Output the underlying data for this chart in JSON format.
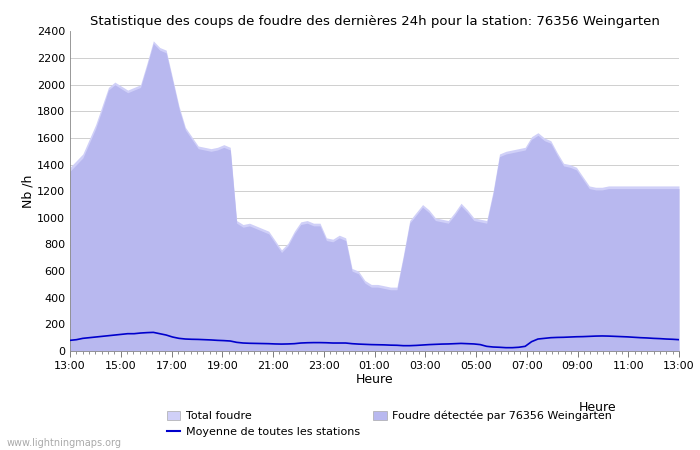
{
  "title": "Statistique des coups de foudre des dernières 24h pour la station: 76356 Weingarten",
  "xlabel": "Heure",
  "ylabel": "Nb /h",
  "ylim": [
    0,
    2400
  ],
  "yticks": [
    0,
    200,
    400,
    600,
    800,
    1000,
    1200,
    1400,
    1600,
    1800,
    2000,
    2200,
    2400
  ],
  "xtick_labels": [
    "13:00",
    "15:00",
    "17:00",
    "19:00",
    "21:00",
    "23:00",
    "01:00",
    "03:00",
    "05:00",
    "07:00",
    "09:00",
    "11:00",
    "13:00"
  ],
  "watermark": "www.lightningmaps.org",
  "total_foudre_color": "#d0d0f8",
  "detected_foudre_color": "#b8b8ef",
  "moyenne_color": "#0000cc",
  "total_foudre": [
    1380,
    1430,
    1480,
    1590,
    1700,
    1840,
    1980,
    2020,
    1990,
    1960,
    1980,
    2000,
    2160,
    2330,
    2280,
    2260,
    2050,
    1840,
    1680,
    1610,
    1540,
    1530,
    1520,
    1530,
    1550,
    1530,
    980,
    950,
    960,
    940,
    920,
    900,
    830,
    760,
    810,
    900,
    970,
    980,
    960,
    960,
    850,
    840,
    870,
    850,
    620,
    600,
    530,
    500,
    500,
    490,
    480,
    480,
    720,
    980,
    1040,
    1100,
    1060,
    1000,
    990,
    980,
    1040,
    1110,
    1060,
    1000,
    990,
    980,
    1200,
    1480,
    1500,
    1510,
    1520,
    1530,
    1610,
    1640,
    1600,
    1580,
    1490,
    1410,
    1400,
    1380,
    1310,
    1240,
    1230,
    1230,
    1240,
    1240,
    1240,
    1240,
    1240,
    1240,
    1240,
    1240,
    1240,
    1240,
    1240,
    1240
  ],
  "detected_foudre": [
    1350,
    1400,
    1450,
    1560,
    1670,
    1810,
    1960,
    2000,
    1970,
    1940,
    1960,
    1980,
    2140,
    2310,
    2260,
    2240,
    2030,
    1820,
    1660,
    1590,
    1520,
    1510,
    1500,
    1510,
    1530,
    1510,
    960,
    930,
    940,
    920,
    900,
    880,
    810,
    740,
    790,
    880,
    950,
    960,
    940,
    940,
    830,
    820,
    850,
    830,
    600,
    580,
    510,
    480,
    480,
    470,
    460,
    460,
    700,
    960,
    1020,
    1080,
    1040,
    980,
    970,
    960,
    1020,
    1090,
    1040,
    980,
    970,
    960,
    1180,
    1460,
    1480,
    1490,
    1500,
    1510,
    1590,
    1620,
    1580,
    1560,
    1470,
    1390,
    1380,
    1360,
    1290,
    1220,
    1210,
    1210,
    1220,
    1220,
    1220,
    1220,
    1220,
    1220,
    1220,
    1220,
    1220,
    1220,
    1220,
    1220
  ],
  "moyenne": [
    80,
    85,
    95,
    100,
    105,
    110,
    115,
    120,
    125,
    130,
    130,
    135,
    138,
    140,
    130,
    120,
    105,
    95,
    90,
    88,
    87,
    85,
    83,
    80,
    78,
    75,
    65,
    60,
    58,
    57,
    56,
    55,
    53,
    52,
    53,
    55,
    60,
    62,
    63,
    63,
    62,
    60,
    60,
    60,
    55,
    52,
    50,
    48,
    47,
    46,
    44,
    43,
    40,
    40,
    42,
    45,
    48,
    50,
    52,
    53,
    55,
    57,
    55,
    53,
    48,
    35,
    30,
    28,
    25,
    25,
    28,
    35,
    70,
    90,
    95,
    100,
    102,
    103,
    105,
    107,
    108,
    110,
    112,
    113,
    112,
    110,
    108,
    106,
    103,
    100,
    98,
    95,
    93,
    90,
    88,
    85
  ],
  "n_ticks_minor": 48
}
